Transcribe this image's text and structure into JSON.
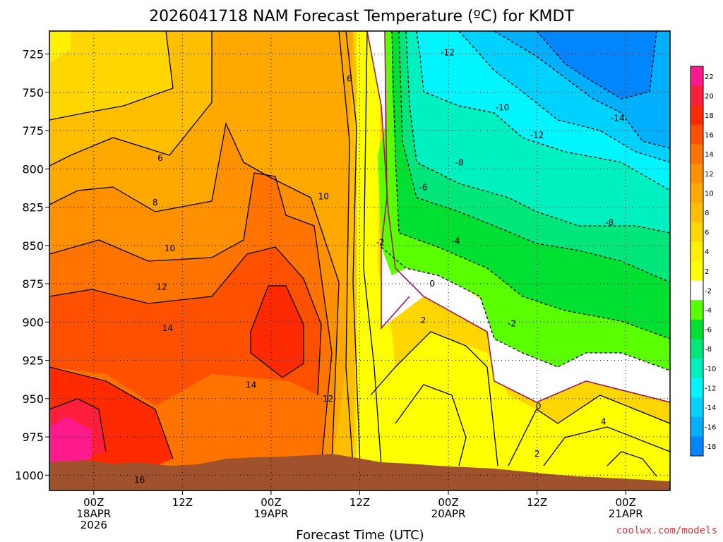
{
  "chart_data": {
    "type": "heatmap",
    "title": "2026041718 NAM Forecast Temperature (ºC) for KMDT",
    "xlabel": "Forecast Time (UTC)",
    "ylabel": "",
    "x_ticks": [
      {
        "hours": 6,
        "lines": [
          "00Z",
          "18APR",
          "2026"
        ]
      },
      {
        "hours": 18,
        "lines": [
          "12Z"
        ]
      },
      {
        "hours": 30,
        "lines": [
          "00Z",
          "19APR"
        ]
      },
      {
        "hours": 42,
        "lines": [
          "12Z"
        ]
      },
      {
        "hours": 54,
        "lines": [
          "00Z",
          "20APR"
        ]
      },
      {
        "hours": 66,
        "lines": [
          "12Z"
        ]
      },
      {
        "hours": 78,
        "lines": [
          "00Z",
          "21APR"
        ]
      }
    ],
    "xlim_hours": [
      0,
      84
    ],
    "y_ticks": [
      725,
      750,
      775,
      800,
      825,
      850,
      875,
      900,
      925,
      950,
      975,
      1000
    ],
    "ylim": [
      1010,
      710
    ],
    "y_inverted": true,
    "colorbar": {
      "labels": [
        "22",
        "20",
        "18",
        "16",
        "14",
        "12",
        "10",
        "8",
        "6",
        "4",
        "2",
        "-2",
        "-4",
        "-6",
        "-8",
        "-10",
        "-12",
        "-14",
        "-16",
        "-18"
      ],
      "colors": [
        "#ff1a8c",
        "#ff1e3c",
        "#ff2a00",
        "#ff5000",
        "#ff7400",
        "#ff9000",
        "#ffa800",
        "#ffbf00",
        "#ffd600",
        "#ffef00",
        "#ffff00",
        "#ffffff",
        "#5aff00",
        "#00e032",
        "#00e67a",
        "#00f0bf",
        "#00f5ff",
        "#00d2ff",
        "#00b0ff",
        "#0087ff"
      ]
    },
    "contour_labels": [
      {
        "text": "6",
        "hour": 40.6,
        "p": 741
      },
      {
        "text": "6",
        "hour": 15.0,
        "p": 793
      },
      {
        "text": "8",
        "hour": 14.3,
        "p": 822
      },
      {
        "text": "10",
        "hour": 37.1,
        "p": 818
      },
      {
        "text": "10",
        "hour": 16.3,
        "p": 852
      },
      {
        "text": "12",
        "hour": 15.2,
        "p": 877
      },
      {
        "text": "14",
        "hour": 16.0,
        "p": 904
      },
      {
        "text": "14",
        "hour": 27.3,
        "p": 941
      },
      {
        "text": "12",
        "hour": 37.7,
        "p": 950
      },
      {
        "text": "16",
        "hour": 12.2,
        "p": 1003
      },
      {
        "text": "-12",
        "hour": 53.9,
        "p": 724
      },
      {
        "text": "-10",
        "hour": 61.3,
        "p": 760
      },
      {
        "text": "-12",
        "hour": 66.0,
        "p": 778
      },
      {
        "text": "-14",
        "hour": 76.9,
        "p": 767
      },
      {
        "text": "-8",
        "hour": 55.5,
        "p": 796
      },
      {
        "text": "-6",
        "hour": 50.6,
        "p": 812
      },
      {
        "text": "-4",
        "hour": 55.0,
        "p": 847
      },
      {
        "text": "-2",
        "hour": 44.8,
        "p": 848
      },
      {
        "text": "-8",
        "hour": 75.8,
        "p": 835
      },
      {
        "text": "0",
        "hour": 51.8,
        "p": 875
      },
      {
        "text": "2",
        "hour": 50.6,
        "p": 899
      },
      {
        "text": "-2",
        "hour": 62.6,
        "p": 901
      },
      {
        "text": "0",
        "hour": 66.2,
        "p": 955
      },
      {
        "text": "2",
        "hour": 66.0,
        "p": 986
      },
      {
        "text": "4",
        "hour": 75.0,
        "p": 965
      }
    ],
    "grid": true
  },
  "credit": "coolwx.com/models"
}
